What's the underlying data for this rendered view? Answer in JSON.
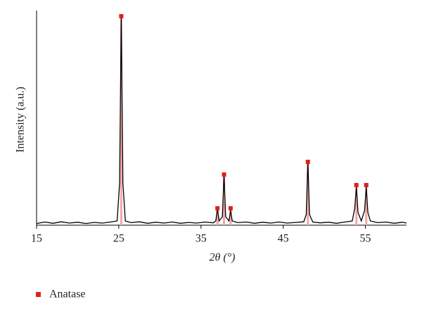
{
  "chart_data": {
    "type": "line",
    "xlabel": "2θ (°)",
    "ylabel": "Intensity (a.u.)",
    "xlim": [
      15,
      60
    ],
    "xticks": [
      15,
      25,
      35,
      45,
      55
    ],
    "ylim": [
      0,
      100
    ],
    "legend": "bottom-left",
    "trace": {
      "color": "#000000",
      "x": [
        15,
        16,
        17,
        18,
        19,
        20,
        21,
        22,
        23,
        24,
        24.8,
        25.1,
        25.3,
        25.5,
        25.8,
        26.5,
        27.5,
        28.5,
        29.5,
        30.5,
        31.5,
        32.5,
        33.5,
        34.5,
        35.5,
        36.5,
        36.8,
        37.0,
        37.2,
        37.6,
        37.8,
        38.0,
        38.4,
        38.6,
        38.8,
        39.5,
        40.5,
        41.5,
        42.5,
        43.5,
        44.5,
        45.5,
        46.5,
        47.5,
        47.8,
        48.0,
        48.2,
        48.6,
        49.5,
        50.5,
        51.5,
        52.5,
        53.4,
        53.7,
        53.9,
        54.1,
        54.5,
        54.9,
        55.1,
        55.3,
        55.6,
        56.5,
        57.5,
        58.5,
        59.5,
        60
      ],
      "values": [
        0.8,
        1.5,
        0.9,
        1.6,
        1.0,
        1.4,
        0.8,
        1.3,
        1.0,
        1.5,
        2,
        20,
        99,
        20,
        2,
        1.2,
        1.6,
        0.9,
        1.4,
        1.0,
        1.5,
        0.9,
        1.3,
        1.0,
        1.5,
        1.1,
        2,
        8,
        2,
        4,
        24,
        4,
        2,
        7,
        2,
        1.2,
        1.5,
        0.9,
        1.4,
        1.0,
        1.5,
        1.0,
        1.3,
        1.6,
        5,
        30,
        5,
        1.5,
        1.1,
        1.4,
        0.9,
        1.5,
        2,
        8,
        18,
        6,
        2,
        7,
        18,
        6,
        2,
        1.2,
        1.5,
        0.9,
        1.4,
        1.0
      ]
    },
    "series": [
      {
        "name": "Anatase",
        "color": "#e0201c",
        "x": [
          25.3,
          37.0,
          37.8,
          38.6,
          48.0,
          53.9,
          55.1
        ],
        "values": [
          99,
          8,
          24,
          8,
          30,
          19,
          19
        ]
      }
    ]
  }
}
